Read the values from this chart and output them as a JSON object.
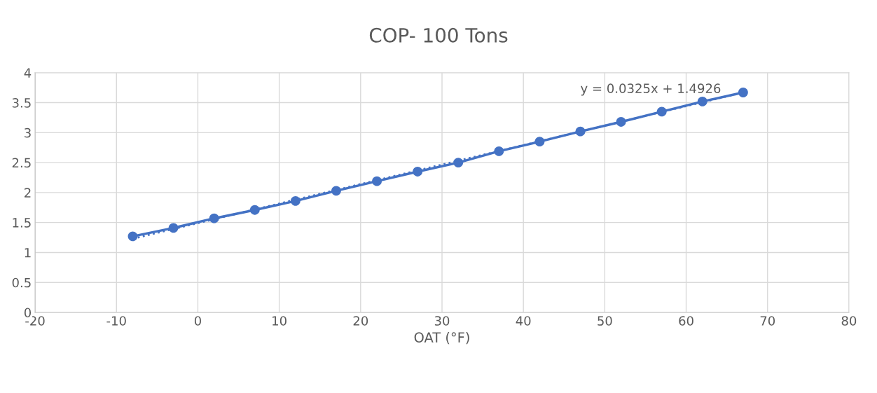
{
  "chart_data": {
    "type": "line",
    "title": "COP- 100 Tons",
    "xlabel": "OAT (°F)",
    "series": [
      {
        "color": "#4472c4",
        "marker": "circle",
        "line_style": "solid",
        "x": [
          -8,
          -3,
          2,
          7,
          12,
          17,
          22,
          27,
          32,
          37,
          42,
          47,
          52,
          57,
          62,
          67
        ],
        "values": [
          1.27,
          1.41,
          1.57,
          1.71,
          1.86,
          2.03,
          2.19,
          2.35,
          2.5,
          2.69,
          2.85,
          3.02,
          3.18,
          3.35,
          3.52,
          3.67
        ]
      },
      {
        "color": "#4472c4",
        "marker": "none",
        "line_style": "dotted",
        "x": [
          -8,
          67
        ],
        "values": [
          1.23,
          3.67
        ]
      }
    ],
    "annotations": [
      "y = 0.0325x + 1.4926"
    ],
    "xlim": [
      -20,
      80
    ],
    "xticks": [
      -20,
      -10,
      0,
      10,
      20,
      30,
      40,
      50,
      60,
      70,
      80
    ],
    "ylim": [
      0,
      4
    ],
    "yticks": [
      0,
      0.5,
      1,
      1.5,
      2,
      2.5,
      3,
      3.5,
      4
    ],
    "grid": true,
    "legend": false
  }
}
